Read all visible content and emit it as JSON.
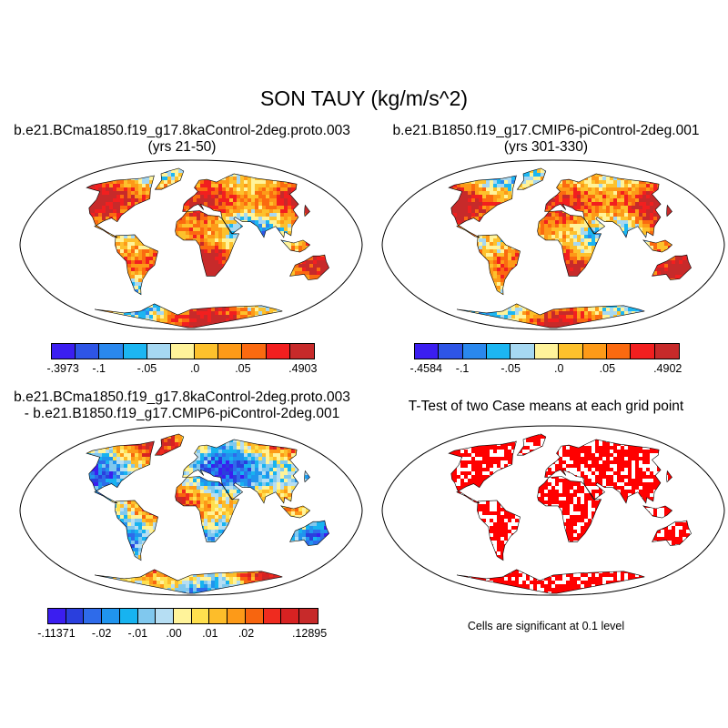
{
  "title": "SON TAUY (kg/m/s^2)",
  "panels": {
    "case1": {
      "title_line1": "b.e21.BCma1850.f19_g17.8kaControl-2deg.proto.003",
      "title_line2": "(yrs 21-50)",
      "map_name": "case1-tauy-map"
    },
    "case2": {
      "title_line1": "b.e21.B1850.f19_g17.CMIP6-piControl-2deg.001",
      "title_line2": "(yrs 301-330)",
      "map_name": "case2-tauy-map"
    },
    "diff": {
      "title_line1": "b.e21.BCma1850.f19_g17.8kaControl-2deg.proto.003",
      "title_line2": "- b.e21.B1850.f19_g17.CMIP6-piControl-2deg.001",
      "map_name": "difference-tauy-map"
    },
    "ttest": {
      "title": "T-Test of two Case means at each grid point",
      "note": "Cells are significant at 0.1 level",
      "map_name": "ttest-significance-map"
    }
  },
  "colorbars": {
    "case1": {
      "colors": [
        "#3b1ef0",
        "#2e55e6",
        "#2a88ee",
        "#1cb6f2",
        "#a6d8f2",
        "#fff39a",
        "#fdc12c",
        "#fd9a18",
        "#fb6a10",
        "#f21f1f",
        "#c72a2a"
      ],
      "labels": [
        "-.3973",
        "-.1",
        "-.05",
        ".0",
        ".05",
        ".4903"
      ],
      "label_edges": [
        0,
        2,
        4,
        6,
        8,
        10
      ]
    },
    "case2": {
      "colors": [
        "#3b1ef0",
        "#2e55e6",
        "#2a88ee",
        "#1cb6f2",
        "#a6d8f2",
        "#fff39a",
        "#fdc12c",
        "#fd9a18",
        "#fb6a10",
        "#f21f1f",
        "#c72a2a"
      ],
      "labels": [
        "-.4584",
        "-.1",
        "-.05",
        ".0",
        ".05",
        ".4902"
      ],
      "label_edges": [
        0,
        2,
        4,
        6,
        8,
        10
      ]
    },
    "diff": {
      "colors": [
        "#3b1ef0",
        "#2a3fdd",
        "#2e6bea",
        "#2094ee",
        "#17b3f0",
        "#80c8ee",
        "#b6def3",
        "#fff39a",
        "#ffe04e",
        "#fdbd2a",
        "#fd9a18",
        "#f7650f",
        "#ef2b1f",
        "#d72222",
        "#c72a2a"
      ],
      "labels": [
        "-.11371",
        "-.02",
        "-.01",
        ".00",
        ".01",
        ".02",
        ".12895"
      ],
      "label_edges": [
        0,
        3,
        5,
        7,
        9,
        11,
        14
      ]
    }
  },
  "significance_color": "#ff0000"
}
